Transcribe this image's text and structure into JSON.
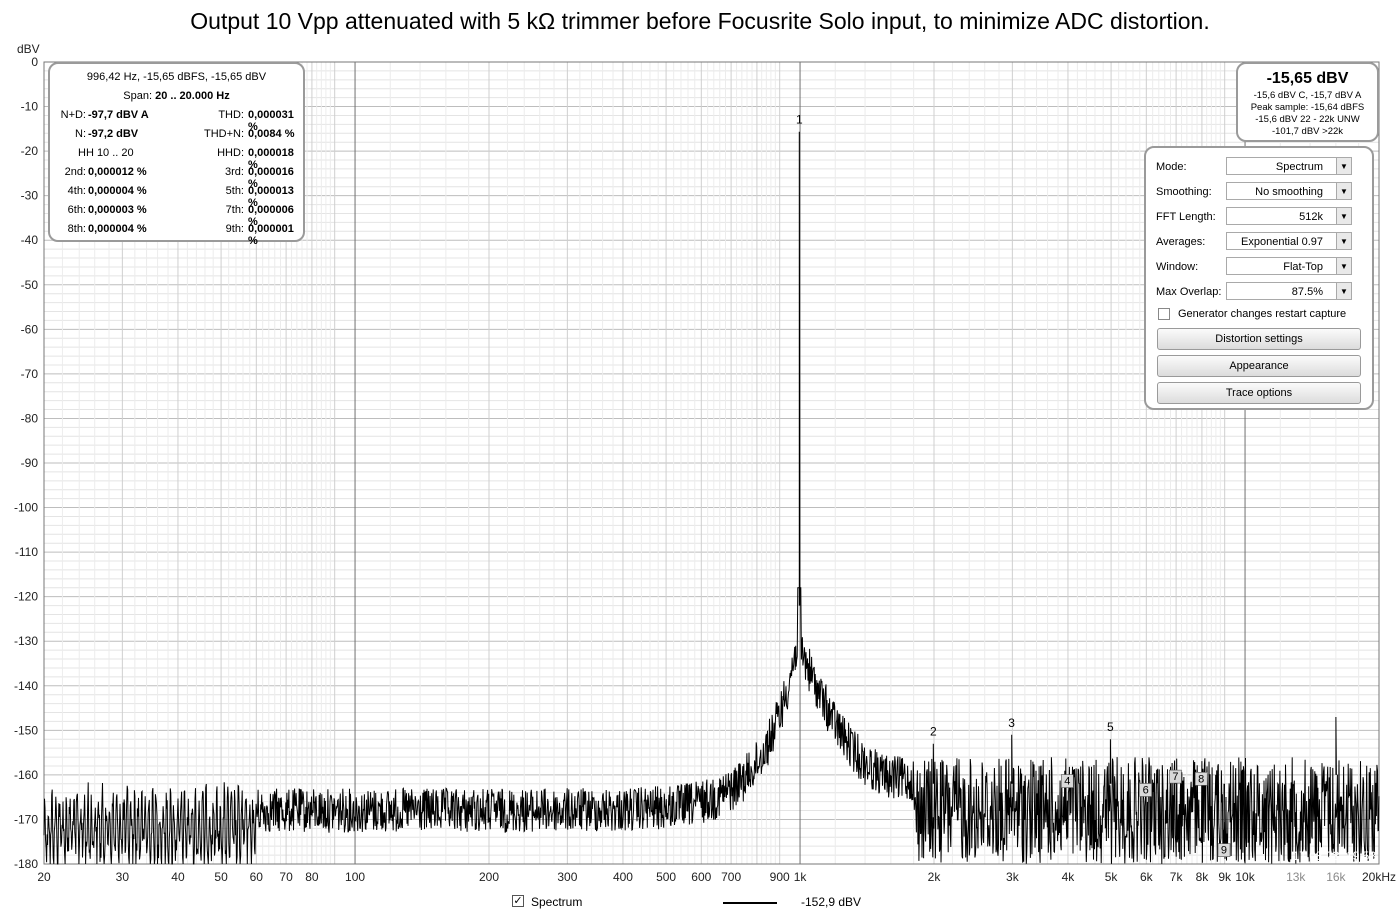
{
  "title": "Output 10 Vpp attenuated with 5 kΩ trimmer before Focusrite Solo input, to minimize ADC distortion.",
  "stats": {
    "header": "996,42 Hz, -15,65 dBFS, -15,65 dBV",
    "span_label": "Span:",
    "span_value": "20 .. 20.000 Hz",
    "rows": [
      {
        "l1": "N+D:",
        "v1": "-97,7 dBV A",
        "l2": "THD:",
        "v2": "0,000031 %"
      },
      {
        "l1": "N:",
        "v1": "-97,2 dBV",
        "l2": "THD+N:",
        "v2": "0,0084 %"
      },
      {
        "l1": "HH 10 .. 20",
        "v1": "",
        "l2": "HHD:",
        "v2": "0,000018 %"
      },
      {
        "l1": "2nd:",
        "v1": "0,000012 %",
        "l2": "3rd:",
        "v2": "0,000016 %"
      },
      {
        "l1": "4th:",
        "v1": "0,000004 %",
        "l2": "5th:",
        "v2": "0,000013 %"
      },
      {
        "l1": "6th:",
        "v1": "0,000003 %",
        "l2": "7th:",
        "v2": "0,000006 %"
      },
      {
        "l1": "8th:",
        "v1": "0,000004 %",
        "l2": "9th:",
        "v2": "0,000001 %"
      }
    ]
  },
  "level": {
    "big": "-15,65 dBV",
    "lines": [
      "-15,6 dBV C, -15,7 dBV A",
      "Peak sample: -15,64 dBFS",
      "-15,6 dBV 22 - 22k UNW",
      "-101,7 dBV >22k"
    ]
  },
  "controls": {
    "rows": [
      {
        "label": "Mode:",
        "value": "Spectrum"
      },
      {
        "label": "Smoothing:",
        "value": "No  smoothing"
      },
      {
        "label": "FFT Length:",
        "value": "512k"
      },
      {
        "label": "Averages:",
        "value": "Exponential 0.97"
      },
      {
        "label": "Window:",
        "value": "Flat-Top"
      },
      {
        "label": "Max Overlap:",
        "value": "87.5%"
      }
    ],
    "checkbox_label": "Generator changes restart capture",
    "checkbox_checked": false,
    "buttons": [
      "Distortion settings",
      "Appearance",
      "Trace options"
    ]
  },
  "legend": {
    "checked_mark": "✓",
    "series_name": "Spectrum",
    "value": "-152,9 dBV"
  },
  "timestamp": "17.08.23. 19:53",
  "colors": {
    "trace": "#000000",
    "grid": "#c8c8c8",
    "panel_border": "#9a9a9a"
  },
  "chart_data": {
    "type": "line",
    "ylabel": "dBV",
    "xlabel": "",
    "x_scale": "log",
    "xlim": [
      20,
      20000
    ],
    "ylim": [
      -180,
      0
    ],
    "y_ticks": [
      0,
      -10,
      -20,
      -30,
      -40,
      -50,
      -60,
      -70,
      -80,
      -90,
      -100,
      -110,
      -120,
      -130,
      -140,
      -150,
      -160,
      -170,
      -180
    ],
    "x_ticks": [
      {
        "f": 20,
        "label": "20"
      },
      {
        "f": 30,
        "label": "30"
      },
      {
        "f": 40,
        "label": "40"
      },
      {
        "f": 50,
        "label": "50"
      },
      {
        "f": 60,
        "label": "60"
      },
      {
        "f": 70,
        "label": "70"
      },
      {
        "f": 80,
        "label": "80"
      },
      {
        "f": 100,
        "label": "100"
      },
      {
        "f": 200,
        "label": "200"
      },
      {
        "f": 300,
        "label": "300"
      },
      {
        "f": 400,
        "label": "400"
      },
      {
        "f": 500,
        "label": "500"
      },
      {
        "f": 600,
        "label": "600"
      },
      {
        "f": 700,
        "label": "700"
      },
      {
        "f": 900,
        "label": "900"
      },
      {
        "f": 1000,
        "label": "1k"
      },
      {
        "f": 2000,
        "label": "2k"
      },
      {
        "f": 3000,
        "label": "3k"
      },
      {
        "f": 4000,
        "label": "4k"
      },
      {
        "f": 5000,
        "label": "5k"
      },
      {
        "f": 6000,
        "label": "6k"
      },
      {
        "f": 7000,
        "label": "7k"
      },
      {
        "f": 8000,
        "label": "8k"
      },
      {
        "f": 9000,
        "label": "9k"
      },
      {
        "f": 10000,
        "label": "10k"
      },
      {
        "f": 13000,
        "label": "13k",
        "grey": true
      },
      {
        "f": 16000,
        "label": "16k",
        "grey": true
      },
      {
        "f": 20000,
        "label": "20kHz"
      }
    ],
    "grid": true,
    "series": [
      {
        "name": "Spectrum",
        "fundamental": {
          "f": 996.42,
          "db": -15.65
        },
        "noise_floor_low_db": -165,
        "noise_floor_high_db": -158,
        "spur": {
          "f": 16000,
          "db": -147
        }
      }
    ],
    "harmonic_markers": [
      {
        "n": "1",
        "f": 996.42,
        "db": -15.65,
        "boxed": false
      },
      {
        "n": "2",
        "f": 1993,
        "db": -153,
        "boxed": false
      },
      {
        "n": "3",
        "f": 2989,
        "db": -151,
        "boxed": false
      },
      {
        "n": "4",
        "f": 3986,
        "db": -161.5,
        "boxed": true
      },
      {
        "n": "5",
        "f": 4982,
        "db": -152,
        "boxed": false
      },
      {
        "n": "6",
        "f": 5979,
        "db": -163.5,
        "boxed": true
      },
      {
        "n": "7",
        "f": 6975,
        "db": -160.5,
        "boxed": true
      },
      {
        "n": "8",
        "f": 7971,
        "db": -161,
        "boxed": true
      },
      {
        "n": "9",
        "f": 8968,
        "db": -177,
        "boxed": true
      }
    ]
  }
}
